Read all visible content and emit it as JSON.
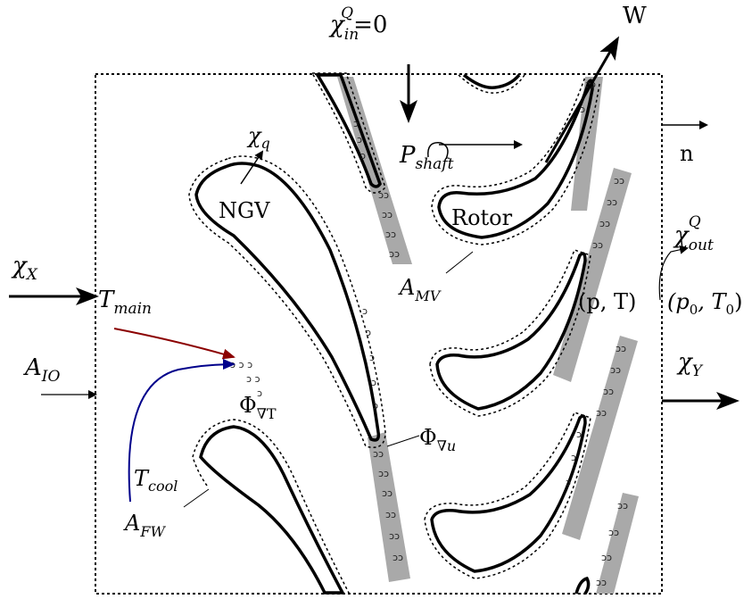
{
  "labels": {
    "W": "W",
    "n": "n",
    "ngv": "NGV",
    "rotor": "Rotor",
    "p_T": "(p, T)",
    "p0_T0": "(p",
    "p0_T0_sub": "0",
    "p0_T0_mid": ", T",
    "p0_T0_sub2": "0",
    "p0_T0_end": ")"
  },
  "symbols": {
    "chi_in": {
      "base": "χ",
      "sub": "in",
      "sup": "Q",
      "rest": "=0"
    },
    "chi_q": {
      "base": "χ",
      "sub": "q"
    },
    "chi_X": {
      "base": "χ",
      "sub": "X"
    },
    "chi_Y": {
      "base": "χ",
      "sub": "Y"
    },
    "chi_out": {
      "base": "χ",
      "sub": "out",
      "sup": "Q"
    },
    "P_shaft": {
      "base": "P",
      "sub": "shaft"
    },
    "A_MV": {
      "base": "A",
      "sub": "MV"
    },
    "A_IO": {
      "base": "A",
      "sub": "IO"
    },
    "A_FW": {
      "base": "A",
      "sub": "FW"
    },
    "T_main": {
      "base": "T",
      "sub": "main"
    },
    "T_cool": {
      "base": "T",
      "sub": "cool"
    },
    "Phi_gradT": {
      "base": "Φ",
      "sub": "∇T"
    },
    "Phi_gradu": {
      "base": "Φ",
      "sub": "∇u"
    }
  },
  "colors": {
    "main_arrow": "#8b0000",
    "cool_arrow": "#00008b",
    "wake": "#a9a9a9",
    "outline": "#000000"
  },
  "swirl_glyph": "ↄↄ"
}
